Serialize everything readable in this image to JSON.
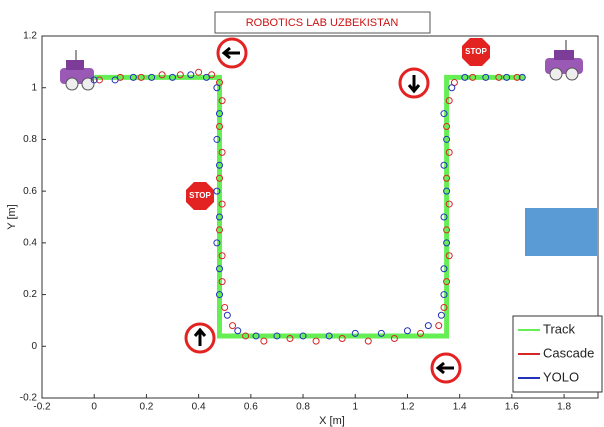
{
  "chart_data": {
    "type": "line",
    "title": "ROBOTICS LAB UZBEKISTAN",
    "xlabel": "X [m]",
    "ylabel": "Y [m]",
    "xlim": [
      -0.2,
      1.93
    ],
    "ylim": [
      -0.2,
      1.2
    ],
    "xticks": [
      -0.2,
      0,
      0.2,
      0.4,
      0.6,
      0.8,
      1,
      1.2,
      1.4,
      1.6,
      1.8
    ],
    "yticks": [
      -0.2,
      0,
      0.2,
      0.4,
      0.6,
      0.8,
      1,
      1.2
    ],
    "grid": false,
    "legend": "lower right",
    "annotations": [
      "STOP",
      "STOP"
    ],
    "series": [
      {
        "name": "Track",
        "color": "#66ee55",
        "style": "line",
        "x": [
          0,
          0.48,
          0.48,
          1.35,
          1.35,
          1.65
        ],
        "values": [
          1.04,
          1.04,
          0.04,
          0.04,
          1.04,
          1.04
        ]
      },
      {
        "name": "Cascade",
        "color": "#d62728",
        "style": "circles",
        "x": [
          0.02,
          0.1,
          0.18,
          0.26,
          0.33,
          0.4,
          0.45,
          0.48,
          0.49,
          0.48,
          0.49,
          0.48,
          0.49,
          0.48,
          0.49,
          0.49,
          0.5,
          0.53,
          0.58,
          0.65,
          0.75,
          0.85,
          0.95,
          1.05,
          1.15,
          1.25,
          1.32,
          1.34,
          1.35,
          1.36,
          1.35,
          1.36,
          1.35,
          1.36,
          1.35,
          1.36,
          1.38,
          1.45,
          1.55,
          1.62
        ],
        "values": [
          1.03,
          1.04,
          1.04,
          1.05,
          1.05,
          1.06,
          1.05,
          1.02,
          0.95,
          0.85,
          0.75,
          0.65,
          0.55,
          0.45,
          0.35,
          0.25,
          0.15,
          0.08,
          0.04,
          0.02,
          0.03,
          0.02,
          0.03,
          0.02,
          0.03,
          0.05,
          0.08,
          0.15,
          0.25,
          0.35,
          0.45,
          0.55,
          0.65,
          0.75,
          0.85,
          0.95,
          1.02,
          1.04,
          1.04,
          1.04
        ]
      },
      {
        "name": "YOLO",
        "color": "#2233bb",
        "style": "circles",
        "x": [
          0.0,
          0.08,
          0.15,
          0.22,
          0.3,
          0.37,
          0.43,
          0.47,
          0.48,
          0.47,
          0.48,
          0.47,
          0.48,
          0.47,
          0.48,
          0.48,
          0.51,
          0.55,
          0.62,
          0.7,
          0.8,
          0.9,
          1.0,
          1.1,
          1.2,
          1.28,
          1.33,
          1.34,
          1.34,
          1.35,
          1.34,
          1.35,
          1.34,
          1.35,
          1.34,
          1.37,
          1.42,
          1.5,
          1.58,
          1.64
        ],
        "values": [
          1.03,
          1.03,
          1.04,
          1.04,
          1.04,
          1.05,
          1.04,
          1.0,
          0.9,
          0.8,
          0.7,
          0.6,
          0.5,
          0.4,
          0.3,
          0.2,
          0.12,
          0.06,
          0.04,
          0.04,
          0.04,
          0.04,
          0.05,
          0.05,
          0.06,
          0.08,
          0.12,
          0.2,
          0.3,
          0.4,
          0.5,
          0.6,
          0.7,
          0.8,
          0.9,
          1.0,
          1.04,
          1.04,
          1.04,
          1.04
        ]
      }
    ]
  }
}
